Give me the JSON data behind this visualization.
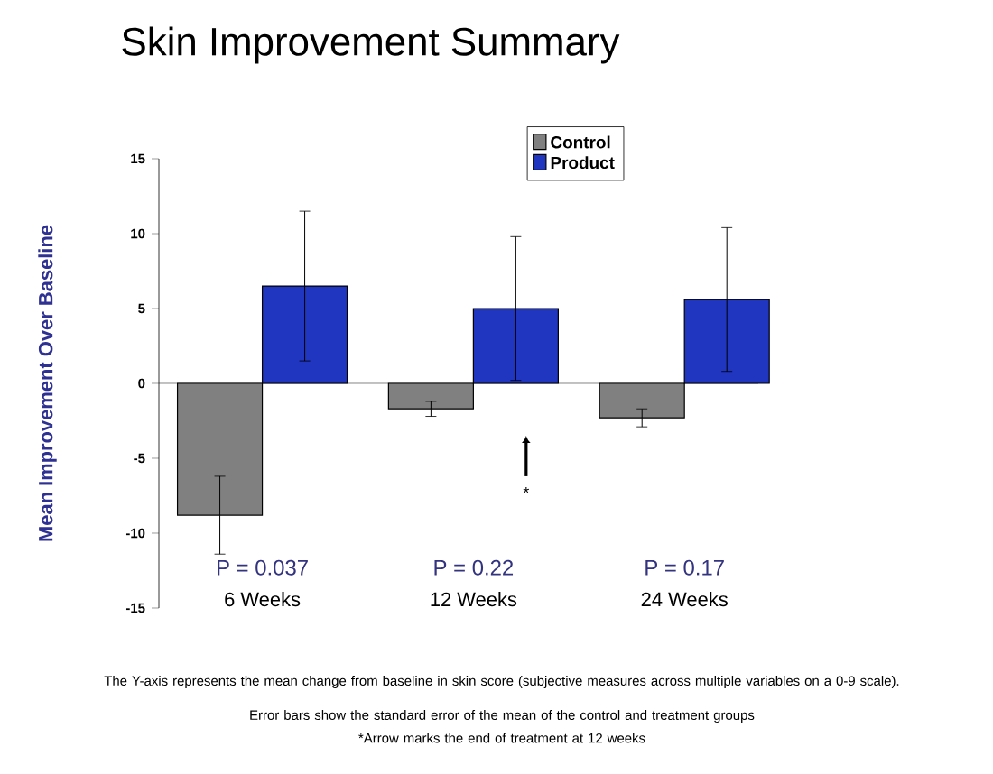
{
  "chart_data": {
    "type": "bar",
    "title": "Skin Improvement Summary",
    "ylabel": "Mean Improvement Over Baseline",
    "categories": [
      "6 Weeks",
      "12 Weeks",
      "24 Weeks"
    ],
    "series": [
      {
        "name": "Control",
        "color": "#808080",
        "values": [
          -8.8,
          -1.7,
          -2.3
        ],
        "errors": [
          2.6,
          0.5,
          0.6
        ]
      },
      {
        "name": "Product",
        "color": "#2035c0",
        "values": [
          6.5,
          5.0,
          5.6
        ],
        "errors": [
          5.0,
          4.8,
          4.8
        ]
      }
    ],
    "ylim": [
      -15,
      15
    ],
    "yticks": [
      -15,
      -10,
      -5,
      0,
      5,
      10,
      15
    ],
    "legend": "top right",
    "annotations": [
      "P = 0.037",
      "P = 0.22",
      "P = 0.17",
      "*",
      "The Y-axis represents the mean change from baseline in skin score (subjective measures across multiple variables on a 0-9 scale).",
      "Error bars show the standard error of the mean of the control and treatment groups",
      "*Arrow marks the end of treatment at 12 weeks"
    ]
  }
}
